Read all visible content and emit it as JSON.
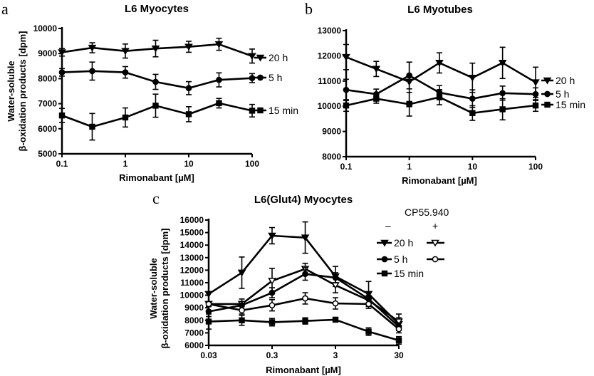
{
  "chart_data": [
    {
      "panel": "a",
      "type": "line",
      "title": "L6 Myocytes",
      "xlabel": "Rimonabant [µM]",
      "ylabel": "Water-soluble β-oxidation products [dpm]",
      "xscale": "log",
      "x": [
        0.1,
        0.3,
        1,
        3,
        10,
        30,
        100
      ],
      "xticks": [
        "0.1",
        "1",
        "10",
        "100"
      ],
      "yticks": [
        "5000",
        "6000",
        "7000",
        "8000",
        "9000",
        "10000"
      ],
      "ylim": [
        5000,
        10000
      ],
      "series": [
        {
          "name": "20 h",
          "marker": "triangle-down-filled",
          "values": [
            9050,
            9230,
            9100,
            9200,
            9270,
            9370,
            8900
          ],
          "errors": [
            150,
            200,
            280,
            330,
            220,
            240,
            280
          ]
        },
        {
          "name": "5 h",
          "marker": "circle-filled",
          "values": [
            8250,
            8300,
            8250,
            7870,
            7620,
            7950,
            8020
          ],
          "errors": [
            150,
            360,
            230,
            300,
            260,
            280,
            180
          ]
        },
        {
          "name": "15 min",
          "marker": "square-filled",
          "values": [
            6530,
            6080,
            6450,
            6920,
            6580,
            7020,
            6720
          ],
          "errors": [
            280,
            530,
            380,
            460,
            300,
            190,
            250
          ]
        }
      ]
    },
    {
      "panel": "b",
      "type": "line",
      "title": "L6 Myotubes",
      "xlabel": "Rimonabant [µM]",
      "ylabel": "",
      "xscale": "log",
      "x": [
        0.1,
        0.3,
        1,
        3,
        10,
        30,
        100
      ],
      "xticks": [
        "0.1",
        "1",
        "10",
        "100"
      ],
      "yticks": [
        "8000",
        "9000",
        "10000",
        "11000",
        "12000",
        "13000"
      ],
      "ylim": [
        8000,
        13000
      ],
      "series": [
        {
          "name": "20 h",
          "marker": "triangle-down-filled",
          "values": [
            11950,
            11480,
            10970,
            11720,
            11130,
            11720,
            10950
          ],
          "errors": [
            500,
            300,
            780,
            400,
            580,
            620,
            600
          ]
        },
        {
          "name": "5 h",
          "marker": "circle-filled",
          "values": [
            10650,
            10480,
            11220,
            10540,
            10300,
            10520,
            10480
          ],
          "errors": [
            420,
            200,
            530,
            280,
            350,
            280,
            250
          ]
        },
        {
          "name": "15 min",
          "marker": "square-filled",
          "values": [
            10030,
            10300,
            10080,
            10360,
            9730,
            9880,
            10030
          ],
          "errors": [
            230,
            180,
            470,
            300,
            290,
            420,
            230
          ]
        }
      ]
    },
    {
      "panel": "c",
      "type": "line",
      "title": "L6(Glut4) Myocytes",
      "xlabel": "Rimonabant [µM]",
      "ylabel": "Water-soluble β-oxidation products [dpm]",
      "xscale": "log",
      "x": [
        0.03,
        0.1,
        0.3,
        1,
        3,
        10,
        30
      ],
      "xticks": [
        "0.03",
        "0.3",
        "3",
        "30"
      ],
      "yticks": [
        "6000",
        "7000",
        "8000",
        "9000",
        "10000",
        "11000",
        "12000",
        "13000",
        "14000",
        "15000",
        "16000"
      ],
      "ylim": [
        6000,
        16000
      ],
      "legend_title": "CP55.940",
      "legend_cols": [
        "–",
        "+"
      ],
      "series": [
        {
          "name": "20 h –",
          "marker": "triangle-down-filled",
          "values": [
            10100,
            11800,
            14750,
            14600,
            11500,
            10100,
            7700
          ],
          "errors": [
            0,
            1250,
            650,
            1250,
            800,
            1000,
            500
          ]
        },
        {
          "name": "20 h +",
          "marker": "triangle-down-open",
          "values": [
            9300,
            9300,
            11150,
            12100,
            10800,
            9600,
            7900
          ],
          "errors": [
            200,
            400,
            1000,
            450,
            600,
            300,
            600
          ]
        },
        {
          "name": "5 h –",
          "marker": "circle-filled",
          "values": [
            8700,
            9200,
            10200,
            11700,
            11400,
            9700,
            7500
          ],
          "errors": [
            400,
            300,
            400,
            500,
            400,
            300,
            300
          ]
        },
        {
          "name": "5 h +",
          "marker": "circle-open",
          "values": [
            9300,
            8800,
            9200,
            9750,
            9350,
            9300,
            7300
          ],
          "errors": [
            200,
            300,
            450,
            450,
            450,
            350,
            300
          ]
        },
        {
          "name": "15 min –",
          "marker": "square-filled",
          "values": [
            7900,
            8000,
            7850,
            7950,
            8050,
            7100,
            6400
          ],
          "errors": [
            600,
            400,
            300,
            250,
            150,
            300,
            300
          ]
        }
      ]
    }
  ],
  "panels": {
    "a": {
      "letter": "a",
      "title": "L6 Myocytes",
      "xlabel": "Rimonabant [µM]",
      "ylabel1": "Water-soluble",
      "ylabel2": "β-oxidation products [dpm]",
      "legend": [
        "20 h",
        "5 h",
        "15 min"
      ]
    },
    "b": {
      "letter": "b",
      "title": "L6 Myotubes",
      "xlabel": "Rimonabant [µM]",
      "legend": [
        "20 h",
        "5 h",
        "15 min"
      ]
    },
    "c": {
      "letter": "c",
      "title": "L6(Glut4) Myocytes",
      "xlabel": "Rimonabant [µM]",
      "ylabel1": "Water-soluble",
      "ylabel2": "β-oxidation products [dpm]",
      "legend_title": "CP55.940",
      "legend_minus": "–",
      "legend_plus": "+",
      "legend": [
        "20 h",
        "5 h",
        "15 min"
      ]
    }
  }
}
